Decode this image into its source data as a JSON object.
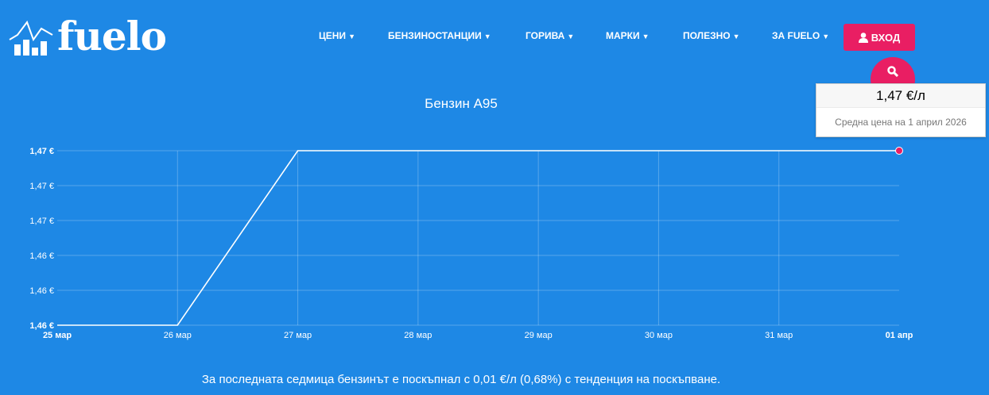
{
  "brand": {
    "name": "fuelo"
  },
  "nav": {
    "items": [
      {
        "label": "ЦЕНИ"
      },
      {
        "label": "БЕНЗИНОСТАНЦИИ"
      },
      {
        "label": "ГОРИВА"
      },
      {
        "label": "МАРКИ"
      },
      {
        "label": "ПОЛЕЗНО"
      },
      {
        "label": "ЗА FUELO"
      }
    ],
    "login": "ВХОД"
  },
  "colors": {
    "background": "#1e88e5",
    "accent": "#e91e63",
    "line": "#ffffff"
  },
  "tooltip": {
    "value": "1,47 €/л",
    "label": "Средна цена на 1 април 2026"
  },
  "summary": "За последната седмица бензинът е поскъпнал с 0,01 €/л (0,68%) с тенденция на поскъпване.",
  "chart_data": {
    "type": "line",
    "title": "Бензин A95",
    "categories": [
      "25 мар",
      "26 мар",
      "27 мар",
      "28 мар",
      "29 мар",
      "30 мар",
      "31 мар",
      "01 апр"
    ],
    "series": [
      {
        "values": [
          1.46,
          1.46,
          1.47,
          1.47,
          1.47,
          1.47,
          1.47,
          1.47
        ]
      }
    ],
    "ylim": [
      1.46,
      1.47
    ],
    "yticks": [
      1.46,
      1.462,
      1.464,
      1.466,
      1.468,
      1.47
    ],
    "ytick_labels": [
      "1,46 €",
      "1,46 €",
      "1,46 €",
      "1,47 €",
      "1,47 €",
      "1,47 €"
    ],
    "grid": true,
    "highlight_index": 7
  }
}
